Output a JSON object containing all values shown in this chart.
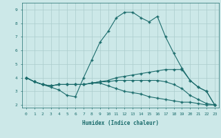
{
  "xlabel": "Humidex (Indice chaleur)",
  "xlim": [
    -0.5,
    23.5
  ],
  "ylim": [
    1.8,
    9.5
  ],
  "background_color": "#cce8e8",
  "grid_color": "#aacccc",
  "line_color": "#1a6b6b",
  "lines": [
    {
      "x": [
        0,
        1,
        2,
        3,
        4,
        5,
        6,
        7,
        8,
        9,
        10,
        11,
        12,
        13,
        14,
        15,
        16,
        17,
        18,
        19,
        20,
        21,
        22,
        23
      ],
      "y": [
        4.0,
        3.7,
        3.5,
        3.3,
        3.1,
        2.7,
        2.6,
        4.0,
        5.3,
        6.6,
        7.4,
        8.4,
        8.8,
        8.8,
        8.4,
        8.1,
        8.5,
        7.0,
        5.8,
        4.7,
        3.8,
        3.3,
        3.0,
        2.0
      ]
    },
    {
      "x": [
        0,
        1,
        2,
        3,
        4,
        5,
        6,
        7,
        8,
        9,
        10,
        11,
        12,
        13,
        14,
        15,
        16,
        17,
        18,
        19,
        20,
        21,
        22,
        23
      ],
      "y": [
        4.0,
        3.7,
        3.5,
        3.4,
        3.5,
        3.5,
        3.5,
        3.5,
        3.6,
        3.7,
        3.8,
        4.0,
        4.1,
        4.2,
        4.3,
        4.4,
        4.5,
        4.6,
        4.6,
        4.6,
        3.8,
        3.3,
        3.0,
        2.0
      ]
    },
    {
      "x": [
        0,
        1,
        2,
        3,
        4,
        5,
        6,
        7,
        8,
        9,
        10,
        11,
        12,
        13,
        14,
        15,
        16,
        17,
        18,
        19,
        20,
        21,
        22,
        23
      ],
      "y": [
        4.0,
        3.7,
        3.5,
        3.4,
        3.5,
        3.5,
        3.5,
        3.5,
        3.6,
        3.7,
        3.7,
        3.8,
        3.8,
        3.8,
        3.8,
        3.8,
        3.8,
        3.7,
        3.5,
        3.2,
        2.7,
        2.4,
        2.1,
        2.0
      ]
    },
    {
      "x": [
        0,
        1,
        2,
        3,
        4,
        5,
        6,
        7,
        8,
        9,
        10,
        11,
        12,
        13,
        14,
        15,
        16,
        17,
        18,
        19,
        20,
        21,
        22,
        23
      ],
      "y": [
        4.0,
        3.7,
        3.5,
        3.4,
        3.5,
        3.5,
        3.5,
        3.5,
        3.6,
        3.6,
        3.4,
        3.2,
        3.0,
        2.9,
        2.8,
        2.6,
        2.5,
        2.4,
        2.3,
        2.2,
        2.2,
        2.1,
        2.0,
        2.0
      ]
    }
  ]
}
